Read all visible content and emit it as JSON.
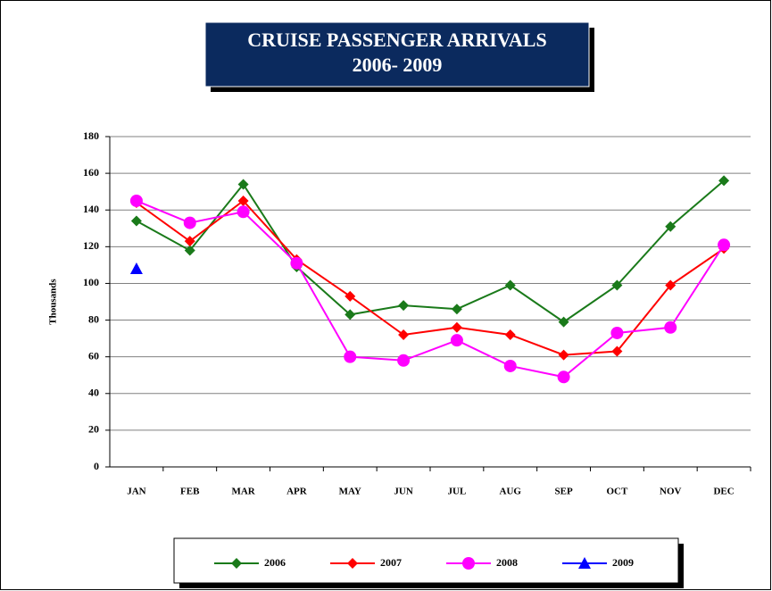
{
  "chart_data": {
    "type": "line",
    "title": "CRUISE PASSENGER ARRIVALS",
    "subtitle": "2006- 2009",
    "y_label": "Thousands",
    "categories": [
      "JAN",
      "FEB",
      "MAR",
      "APR",
      "MAY",
      "JUN",
      "JUL",
      "AUG",
      "SEP",
      "OCT",
      "NOV",
      "DEC"
    ],
    "series": [
      {
        "name": "2006",
        "color": "#1a7a1a",
        "marker": "diamond",
        "values": [
          134,
          118,
          154,
          109,
          83,
          88,
          86,
          99,
          79,
          99,
          131,
          156
        ]
      },
      {
        "name": "2007",
        "color": "#ff0000",
        "marker": "diamond",
        "values": [
          144,
          123,
          145,
          113,
          93,
          72,
          76,
          72,
          61,
          63,
          99,
          119
        ]
      },
      {
        "name": "2008",
        "color": "#ff00ff",
        "marker": "circle",
        "values": [
          145,
          133,
          139,
          111,
          60,
          58,
          69,
          55,
          49,
          73,
          76,
          121
        ]
      },
      {
        "name": "2009",
        "color": "#0000ff",
        "marker": "triangle",
        "values": [
          108,
          null,
          null,
          null,
          null,
          null,
          null,
          null,
          null,
          null,
          null,
          null
        ]
      }
    ],
    "ylim": [
      0,
      180
    ],
    "yticks": [
      0,
      20,
      40,
      60,
      80,
      100,
      120,
      140,
      160,
      180
    ],
    "grid": true,
    "legend": "bottom"
  }
}
